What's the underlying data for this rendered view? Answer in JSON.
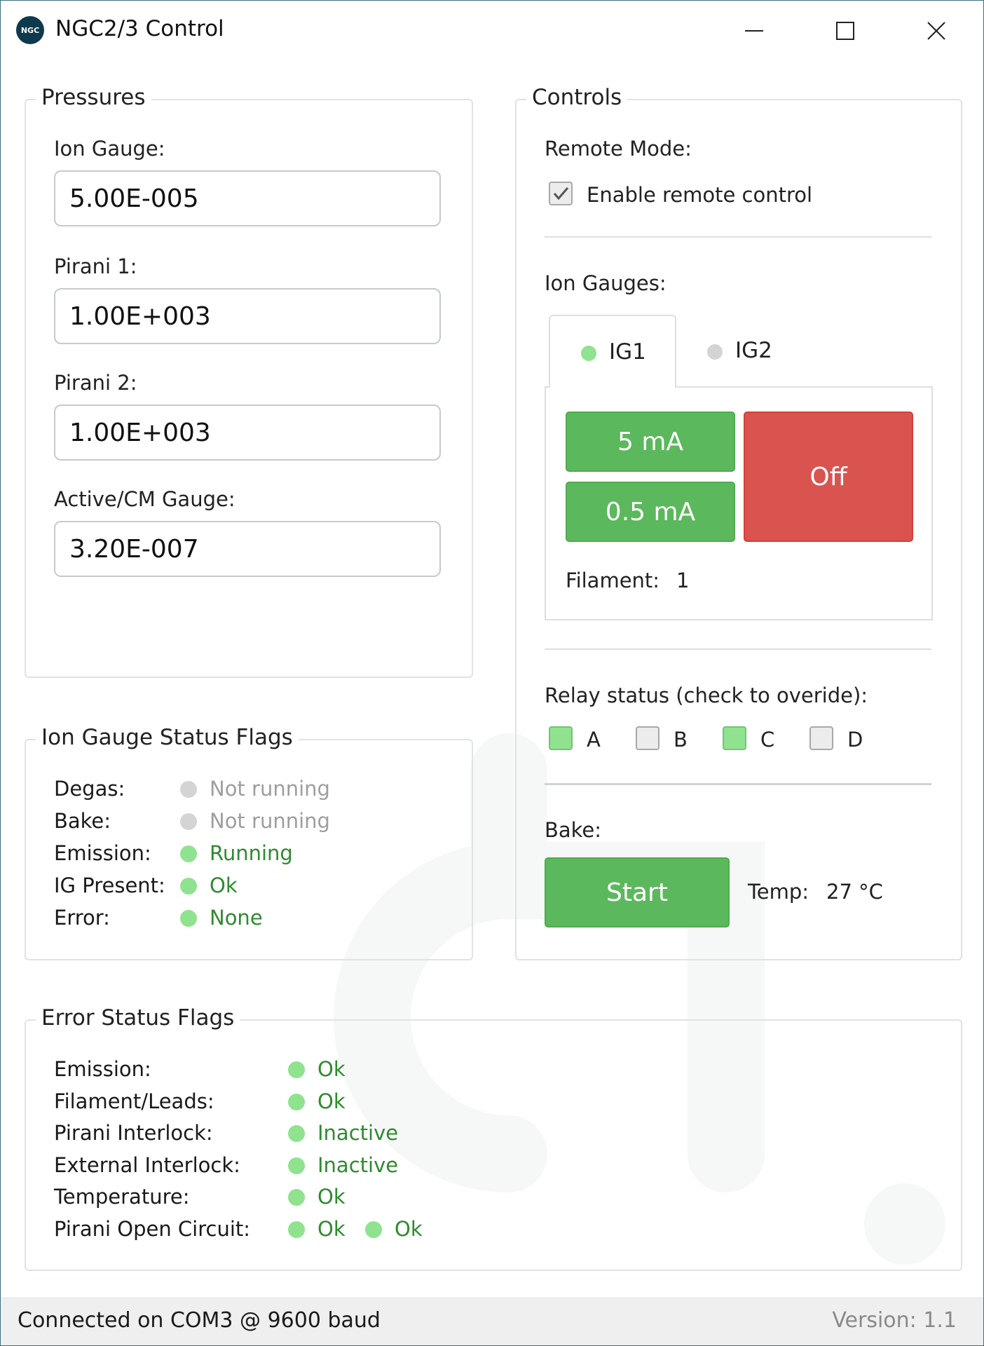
{
  "window": {
    "title": "NGC2/3 Control",
    "icon_text": "NGC"
  },
  "pressures": {
    "title": "Pressures",
    "fields": [
      {
        "label": "Ion Gauge:",
        "value": "5.00E-005"
      },
      {
        "label": "Pirani 1:",
        "value": "1.00E+003"
      },
      {
        "label": "Pirani 2:",
        "value": "1.00E+003"
      },
      {
        "label": "Active/CM Gauge:",
        "value": "3.20E-007"
      }
    ]
  },
  "ig_flags": {
    "title": "Ion Gauge Status Flags",
    "rows": [
      {
        "label": "Degas:",
        "value": "Not running",
        "color": "#9e9e9e",
        "dot": "#d4d4d4"
      },
      {
        "label": "Bake:",
        "value": "Not running",
        "color": "#9e9e9e",
        "dot": "#d4d4d4"
      },
      {
        "label": "Emission:",
        "value": "Running",
        "color": "#2e8b2e",
        "dot": "#8fe38f"
      },
      {
        "label": "IG Present:",
        "value": "Ok",
        "color": "#2e8b2e",
        "dot": "#8fe38f"
      },
      {
        "label": "Error:",
        "value": "None",
        "color": "#2e8b2e",
        "dot": "#8fe38f"
      }
    ]
  },
  "controls": {
    "title": "Controls",
    "remote_mode_label": "Remote Mode:",
    "remote_checkbox_label": "Enable remote control",
    "remote_checked": true,
    "ion_gauges_label": "Ion Gauges:",
    "tabs": [
      {
        "label": "IG1",
        "dot": "#8fe38f",
        "active": true
      },
      {
        "label": "IG2",
        "dot": "#d4d4d4",
        "active": false
      }
    ],
    "btn_5ma": "5 mA",
    "btn_05ma": "0.5 mA",
    "btn_off": "Off",
    "filament_label": "Filament:",
    "filament_value": "1",
    "relay_label": "Relay status (check to overide):",
    "relays": [
      {
        "label": "A",
        "checked": true
      },
      {
        "label": "B",
        "checked": false
      },
      {
        "label": "C",
        "checked": true
      },
      {
        "label": "D",
        "checked": false
      }
    ],
    "bake_label": "Bake:",
    "bake_button": "Start",
    "temp_label": "Temp:",
    "temp_value": "27 °C"
  },
  "error_flags": {
    "title": "Error Status Flags",
    "rows": [
      {
        "label": "Emission:",
        "values": [
          "Ok"
        ]
      },
      {
        "label": "Filament/Leads:",
        "values": [
          "Ok"
        ]
      },
      {
        "label": "Pirani Interlock:",
        "values": [
          "Inactive"
        ]
      },
      {
        "label": "External Interlock:",
        "values": [
          "Inactive"
        ]
      },
      {
        "label": "Temperature:",
        "values": [
          "Ok"
        ]
      },
      {
        "label": "Pirani Open Circuit:",
        "values": [
          "Ok",
          "Ok"
        ]
      }
    ],
    "ok_color": "#2e8b2e",
    "ok_dot": "#8fe38f"
  },
  "status": {
    "connection": "Connected on COM3 @ 9600 baud",
    "version": "Version: 1.1"
  },
  "colors": {
    "accent_green": "#5cb85c",
    "accent_red": "#d9534f",
    "border": "#3c6f80"
  }
}
